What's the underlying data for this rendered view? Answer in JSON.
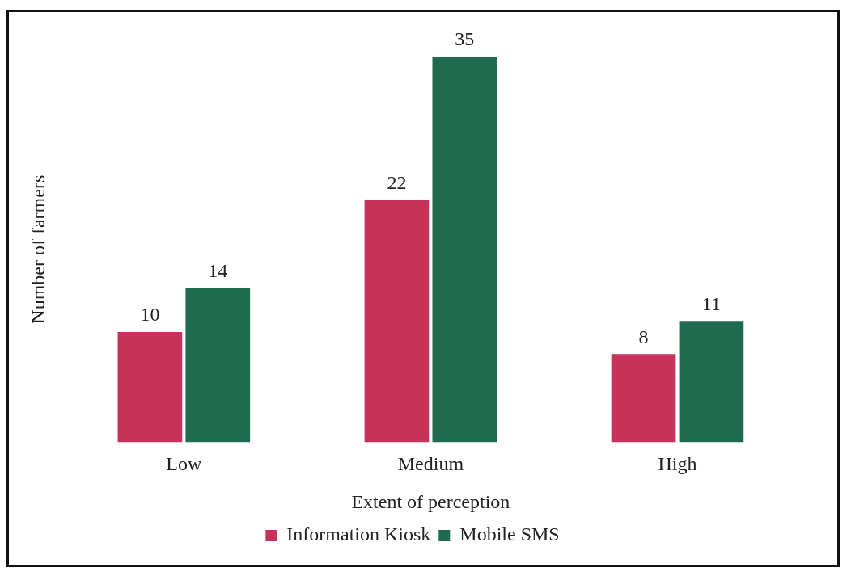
{
  "chart_data": {
    "type": "bar",
    "xlabel": "Extent of perception",
    "ylabel": "Number of farmers",
    "categories": [
      "Low",
      "Medium",
      "High"
    ],
    "series": [
      {
        "name": "Information Kiosk",
        "color": "#c8325a",
        "values": [
          10,
          22,
          8
        ]
      },
      {
        "name": "Mobile SMS",
        "color": "#1f6b50",
        "values": [
          14,
          35,
          11
        ]
      }
    ],
    "data_labels": true,
    "legend": "bottom",
    "grid": false
  }
}
